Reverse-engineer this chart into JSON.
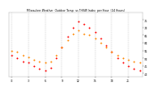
{
  "title": "Milwaukee Weather  Outdoor Temp  vs THSW Index  per Hour  (24 Hours)",
  "hours": [
    0,
    1,
    2,
    3,
    4,
    5,
    6,
    7,
    8,
    9,
    10,
    11,
    12,
    13,
    14,
    15,
    16,
    17,
    18,
    19,
    20,
    21,
    22,
    23
  ],
  "temp": [
    55,
    54,
    52,
    51,
    49,
    48,
    47,
    48,
    52,
    57,
    62,
    66,
    68,
    66,
    65,
    63,
    60,
    57,
    54,
    52,
    50,
    49,
    48,
    47
  ],
  "thsw": [
    52,
    50,
    48,
    47,
    45,
    43,
    42,
    44,
    50,
    57,
    64,
    70,
    74,
    72,
    70,
    67,
    63,
    58,
    54,
    50,
    47,
    45,
    43,
    42
  ],
  "temp_color": "#ff8800",
  "thsw_color": "#ff0000",
  "black_color": "#000000",
  "bg_color": "#ffffff",
  "grid_color": "#aaaaaa",
  "text_color": "#000000",
  "ylim": [
    38,
    80
  ],
  "ytick_labels": [
    "75",
    "70",
    "65",
    "60",
    "55",
    "50",
    "45",
    "40"
  ],
  "ytick_vals": [
    75,
    70,
    65,
    60,
    55,
    50,
    45,
    40
  ],
  "marker_size": 1.8,
  "title_fontsize": 2.2,
  "tick_fontsize": 2.2,
  "vgrid_interval": 3
}
